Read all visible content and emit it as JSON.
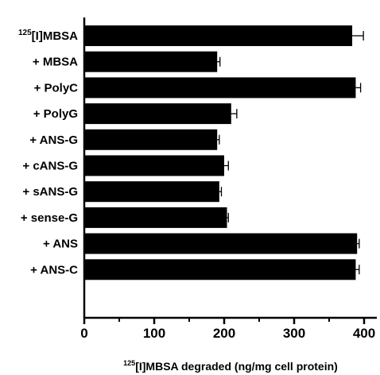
{
  "chart_data": {
    "type": "bar",
    "orientation": "horizontal",
    "categories": [
      {
        "sup": "125",
        "text": "[I]MBSA"
      },
      {
        "sup": "",
        "text": "+ MBSA"
      },
      {
        "sup": "",
        "text": "+ PolyC"
      },
      {
        "sup": "",
        "text": "+ PolyG"
      },
      {
        "sup": "",
        "text": "+ ANS-G"
      },
      {
        "sup": "",
        "text": "+ cANS-G"
      },
      {
        "sup": "",
        "text": "+ sANS-G"
      },
      {
        "sup": "",
        "text": "+ sense-G"
      },
      {
        "sup": "",
        "text": "+ ANS"
      },
      {
        "sup": "",
        "text": "+ ANS-C"
      }
    ],
    "values": [
      383,
      190,
      388,
      210,
      190,
      200,
      193,
      204,
      390,
      388
    ],
    "errors": [
      16,
      4,
      7,
      8,
      3,
      6,
      3,
      2,
      3,
      5
    ],
    "xlim": [
      0,
      420
    ],
    "xticks": [
      "0",
      "100",
      "200",
      "300",
      "400"
    ],
    "xlabel": {
      "sup": "125",
      "text": "[I]MBSA degraded (ng/mg cell protein)"
    },
    "bar_color": "#000000",
    "grid": false
  }
}
